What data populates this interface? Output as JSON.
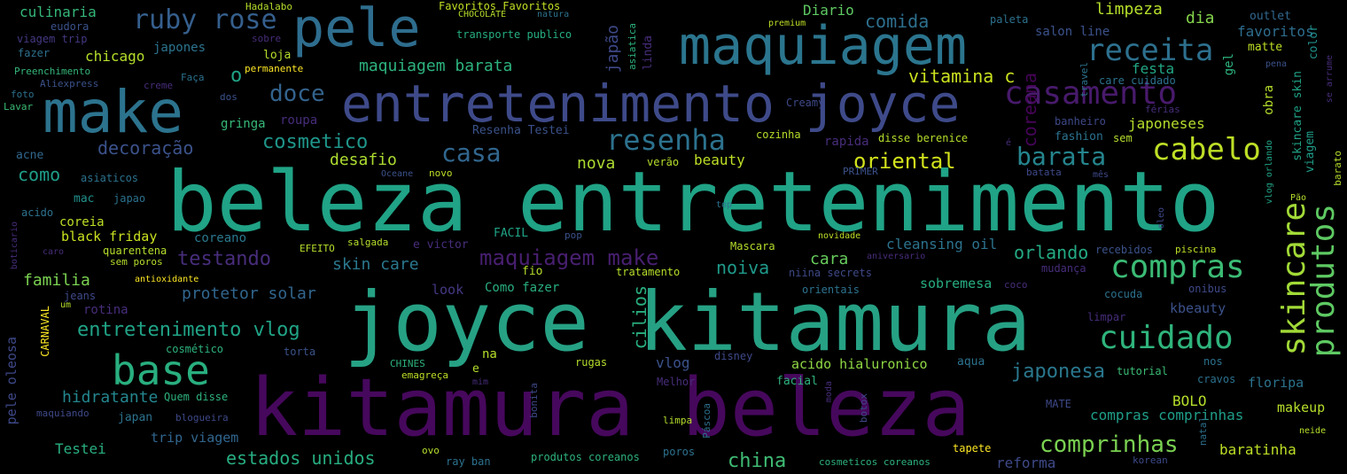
{
  "palette": {
    "background": "#000000",
    "purple_dark": "#440154",
    "indigo": "#3b528b",
    "blue": "#31688e",
    "teal": "#21918c",
    "green": "#35b779",
    "lime": "#b5de2b"
  },
  "words": [
    {
      "text": "beleza entretenimento"
    },
    {
      "text": "joyce kitamura"
    },
    {
      "text": "kitamura beleza"
    },
    {
      "text": "entretenimento joyce"
    },
    {
      "text": "maquiagem"
    },
    {
      "text": "make"
    },
    {
      "text": "pele"
    },
    {
      "text": "base"
    },
    {
      "text": "casamento"
    },
    {
      "text": "receita"
    },
    {
      "text": "skincare"
    },
    {
      "text": "produtos"
    },
    {
      "text": "compras"
    },
    {
      "text": "cuidado"
    },
    {
      "text": "cabelo"
    },
    {
      "text": "resenha"
    },
    {
      "text": "ruby rose"
    },
    {
      "text": "maquiagem make"
    },
    {
      "text": "barata"
    },
    {
      "text": "casa"
    },
    {
      "text": "doce"
    },
    {
      "text": "comprinhas"
    },
    {
      "text": "entretenimento vlog"
    },
    {
      "text": "cosmetico"
    },
    {
      "text": "testando"
    },
    {
      "text": "oriental"
    },
    {
      "text": "japonesa"
    },
    {
      "text": "china"
    },
    {
      "text": "estados unidos"
    },
    {
      "text": "orlando"
    },
    {
      "text": "cilios"
    },
    {
      "text": "coreana"
    },
    {
      "text": "maquiagem barata"
    },
    {
      "text": "vitamina c"
    },
    {
      "text": "decoração"
    },
    {
      "text": "desafio"
    },
    {
      "text": "comida"
    },
    {
      "text": "culinaria"
    },
    {
      "text": "limpeza"
    },
    {
      "text": "dia"
    },
    {
      "text": "favoritos"
    },
    {
      "text": "festa"
    },
    {
      "text": "nova"
    },
    {
      "text": "noiva"
    },
    {
      "text": "cara"
    },
    {
      "text": "skin care"
    },
    {
      "text": "familia"
    },
    {
      "text": "como"
    },
    {
      "text": "chicago"
    },
    {
      "text": "japão"
    },
    {
      "text": "Diario"
    },
    {
      "text": "protetor solar"
    },
    {
      "text": "hidratante"
    },
    {
      "text": "baratinha"
    },
    {
      "text": "vlog"
    },
    {
      "text": "Testei"
    },
    {
      "text": "black friday"
    },
    {
      "text": "cleansing oil"
    },
    {
      "text": "compras comprinhas"
    },
    {
      "text": "BOLO"
    },
    {
      "text": "reforma"
    },
    {
      "text": "o"
    },
    {
      "text": "beauty"
    },
    {
      "text": "sobremesa"
    },
    {
      "text": "japoneses"
    },
    {
      "text": "floripa"
    },
    {
      "text": "kbeauty"
    },
    {
      "text": "makeup"
    },
    {
      "text": "trip viagem"
    },
    {
      "text": "acido hialuronico"
    },
    {
      "text": "pele oleosa"
    },
    {
      "text": "salon line"
    },
    {
      "text": "obra"
    },
    {
      "text": "gel"
    },
    {
      "text": "rotina"
    },
    {
      "text": "coreia"
    },
    {
      "text": "coreano"
    },
    {
      "text": "look"
    },
    {
      "text": "Como fazer"
    },
    {
      "text": "fashion"
    },
    {
      "text": "skincare skin"
    },
    {
      "text": "viagem"
    },
    {
      "text": "matte"
    },
    {
      "text": "color"
    },
    {
      "text": "outlet"
    },
    {
      "text": "japones"
    },
    {
      "text": "loja"
    },
    {
      "text": "gringa"
    },
    {
      "text": "roupa"
    },
    {
      "text": "acne"
    },
    {
      "text": "mac"
    },
    {
      "text": "japao"
    },
    {
      "text": "japan"
    },
    {
      "text": "Quem disse"
    },
    {
      "text": "blogueira"
    },
    {
      "text": "eudora"
    },
    {
      "text": "viagem trip"
    },
    {
      "text": "fazer"
    },
    {
      "text": "Preenchimento"
    },
    {
      "text": "Aliexpress"
    },
    {
      "text": "foto"
    },
    {
      "text": "Lavar"
    },
    {
      "text": "Hadalabo"
    },
    {
      "text": "sobre"
    },
    {
      "text": "permanente"
    },
    {
      "text": "dos"
    },
    {
      "text": "Faça"
    },
    {
      "text": "creme"
    },
    {
      "text": "Favoritos Favoritos"
    },
    {
      "text": "CHOCOLATE"
    },
    {
      "text": "natura"
    },
    {
      "text": "transporte publico"
    },
    {
      "text": "asiatica"
    },
    {
      "text": "linda"
    },
    {
      "text": "premium"
    },
    {
      "text": "paleta"
    },
    {
      "text": "travel"
    },
    {
      "text": "care cuidado"
    },
    {
      "text": "pena"
    },
    {
      "text": "se arrume"
    },
    {
      "text": "Creamy"
    },
    {
      "text": "banheiro"
    },
    {
      "text": "férias"
    },
    {
      "text": "sem"
    },
    {
      "text": "Resenha Testei"
    },
    {
      "text": "cozinha"
    },
    {
      "text": "rapida"
    },
    {
      "text": "disse berenice"
    },
    {
      "text": "é"
    },
    {
      "text": "verão"
    },
    {
      "text": "Oceane"
    },
    {
      "text": "novo"
    },
    {
      "text": "PRIMER"
    },
    {
      "text": "batata"
    },
    {
      "text": "mês"
    },
    {
      "text": "vlog orlando"
    },
    {
      "text": "Pão"
    },
    {
      "text": "barato"
    },
    {
      "text": "asiaticos"
    },
    {
      "text": "acido"
    },
    {
      "text": "top"
    },
    {
      "text": "oleo"
    },
    {
      "text": "boticario"
    },
    {
      "text": "caro"
    },
    {
      "text": "quarentena"
    },
    {
      "text": "sem poros"
    },
    {
      "text": "EFEITO"
    },
    {
      "text": "salgada"
    },
    {
      "text": "e victor"
    },
    {
      "text": "FACIL"
    },
    {
      "text": "pop"
    },
    {
      "text": "Mascara"
    },
    {
      "text": "novidade"
    },
    {
      "text": "aniversario"
    },
    {
      "text": "recebidos"
    },
    {
      "text": "piscina"
    },
    {
      "text": "mudança"
    },
    {
      "text": "antioxidante"
    },
    {
      "text": "fio"
    },
    {
      "text": "tratamento"
    },
    {
      "text": "niina secrets"
    },
    {
      "text": "coco"
    },
    {
      "text": "jeans"
    },
    {
      "text": "um"
    },
    {
      "text": "cocuda"
    },
    {
      "text": "onibus"
    },
    {
      "text": "orientais"
    },
    {
      "text": "limpar"
    },
    {
      "text": "CARNAVAL"
    },
    {
      "text": "cosmético"
    },
    {
      "text": "torta"
    },
    {
      "text": "na"
    },
    {
      "text": "disney"
    },
    {
      "text": "aqua"
    },
    {
      "text": "tutorial"
    },
    {
      "text": "nos"
    },
    {
      "text": "cravos"
    },
    {
      "text": "CHINES"
    },
    {
      "text": "e"
    },
    {
      "text": "mim"
    },
    {
      "text": "emagreça"
    },
    {
      "text": "rugas"
    },
    {
      "text": "Melhor"
    },
    {
      "text": "facial"
    },
    {
      "text": "moda"
    },
    {
      "text": "botox"
    },
    {
      "text": "MATE"
    },
    {
      "text": "maquiando"
    },
    {
      "text": "bonita"
    },
    {
      "text": "limpa"
    },
    {
      "text": "Páscoa"
    },
    {
      "text": "natal"
    },
    {
      "text": "neide"
    },
    {
      "text": "ovo"
    },
    {
      "text": "ray ban"
    },
    {
      "text": "produtos coreanos"
    },
    {
      "text": "poros"
    },
    {
      "text": "cosmeticos coreanos"
    },
    {
      "text": "tapete"
    },
    {
      "text": "korean"
    }
  ]
}
